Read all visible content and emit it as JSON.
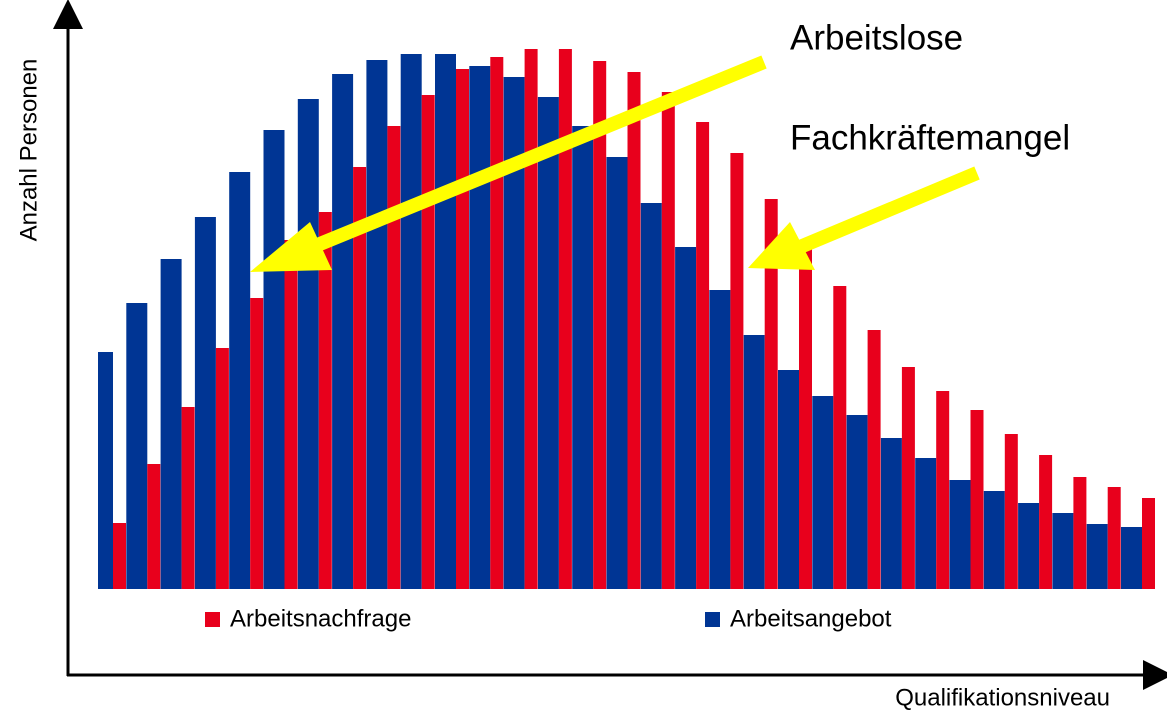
{
  "chart_data": {
    "type": "bar",
    "x_label": "Qualifikationsniveau",
    "y_label": "Anzahl Personen",
    "annotations": [
      "Arbeitslose",
      "Fachkräftemangel"
    ],
    "ylim": [
      0,
      580
    ],
    "series": [
      {
        "name": "Arbeitsnachfrage",
        "color": "#e8001c",
        "values": [
          66,
          125,
          182,
          241,
          291,
          349,
          377,
          422,
          463,
          494,
          520,
          532,
          540,
          540,
          528,
          517,
          497,
          467,
          436,
          390,
          348,
          303,
          259,
          222,
          198,
          179,
          155,
          134,
          112,
          102,
          91
        ]
      },
      {
        "name": "Arbeitsangebot",
        "color": "#003594",
        "values": [
          237,
          286,
          330,
          372,
          417,
          459,
          490,
          515,
          529,
          535,
          535,
          523,
          512,
          492,
          463,
          432,
          386,
          342,
          299,
          254,
          219,
          193,
          174,
          151,
          131,
          109,
          98,
          86,
          76,
          65,
          62
        ]
      }
    ]
  }
}
